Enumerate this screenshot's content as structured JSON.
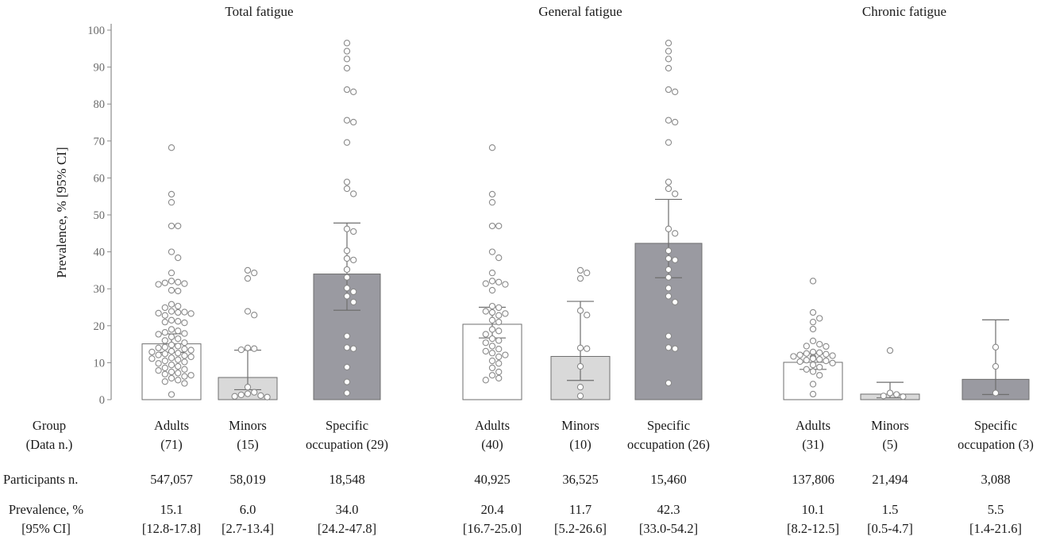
{
  "chart_data": {
    "type": "bar",
    "ylabel": "Prevalence, % [95% CI]",
    "ylim": [
      0,
      100
    ],
    "yticks": [
      0,
      10,
      20,
      30,
      40,
      50,
      60,
      70,
      80,
      90,
      100
    ],
    "colors": {
      "Adults": "#ffffff",
      "Minors": "#d9d9d9",
      "Specific occupation": "#9a9aa1",
      "axis": "#8c8c8c",
      "dot_edge": "#8a8a8a"
    },
    "row_labels": {
      "group": [
        "Group",
        "(Data n.)"
      ],
      "participants": "Participants n.",
      "prevalence": [
        "Prevalence, %",
        "[95% CI]"
      ]
    },
    "panels": [
      {
        "title": "Total fatigue",
        "bars": [
          {
            "group": "Adults",
            "label": [
              "Adults",
              "(71)"
            ],
            "participants": "547,057",
            "prevalence": "15.1",
            "ci_text": "[12.8-17.8]",
            "value": 15.1,
            "ci": [
              12.8,
              17.8
            ],
            "points": [
              68.2,
              55.6,
              53.4,
              47.0,
              47.0,
              40.0,
              38.4,
              34.3,
              32.1,
              31.8,
              31.6,
              31.4,
              31.2,
              29.6,
              29.4,
              25.8,
              25.3,
              24.9,
              23.9,
              23.7,
              23.6,
              23.4,
              23.3,
              22.8,
              21.5,
              21.2,
              21.0,
              20.8,
              19.0,
              18.6,
              18.2,
              17.9,
              17.7,
              17.0,
              16.5,
              16.0,
              15.4,
              14.8,
              14.5,
              14.2,
              14.0,
              13.7,
              13.4,
              13.1,
              12.9,
              12.6,
              12.4,
              12.1,
              11.9,
              11.6,
              11.3,
              11.1,
              10.8,
              10.5,
              10.2,
              9.8,
              9.4,
              9.0,
              8.6,
              8.2,
              7.9,
              7.5,
              7.2,
              6.9,
              6.6,
              6.3,
              5.8,
              5.3,
              4.9,
              4.4,
              1.4
            ]
          },
          {
            "group": "Minors",
            "label": [
              "Minors",
              "(15)"
            ],
            "participants": "58,019",
            "prevalence": "6.0",
            "ci_text": "[2.7-13.4]",
            "value": 6.0,
            "ci": [
              2.7,
              13.4
            ],
            "points": [
              35.0,
              34.3,
              32.8,
              23.9,
              22.9,
              14.0,
              13.8,
              13.5,
              3.4,
              2.0,
              1.6,
              1.3,
              1.1,
              0.9,
              0.7
            ]
          },
          {
            "group": "Specific occupation",
            "label": [
              "Specific",
              "occupation (29)"
            ],
            "participants": "18,548",
            "prevalence": "34.0",
            "ci_text": "[24.2-47.8]",
            "value": 34.0,
            "ci": [
              24.2,
              47.8
            ],
            "points": [
              96.5,
              94.3,
              92.2,
              89.7,
              83.9,
              83.3,
              75.6,
              75.1,
              69.6,
              58.9,
              57.1,
              55.7,
              46.2,
              45.5,
              40.3,
              38.2,
              37.8,
              35.2,
              33.1,
              30.2,
              29.2,
              28.0,
              26.4,
              17.2,
              14.1,
              13.8,
              8.8,
              4.8,
              1.8
            ]
          }
        ]
      },
      {
        "title": "General fatigue",
        "bars": [
          {
            "group": "Adults",
            "label": [
              "Adults",
              "(40)"
            ],
            "participants": "40,925",
            "prevalence": "20.4",
            "ci_text": "[16.7-25.0]",
            "value": 20.4,
            "ci": [
              16.7,
              25.0
            ],
            "points": [
              68.2,
              55.6,
              53.4,
              47.0,
              47.0,
              40.0,
              38.4,
              34.3,
              32.1,
              31.8,
              31.4,
              31.2,
              29.6,
              25.3,
              24.9,
              23.9,
              23.6,
              23.3,
              22.8,
              21.5,
              21.0,
              19.0,
              18.6,
              17.7,
              16.5,
              16.0,
              15.4,
              14.5,
              13.7,
              13.1,
              12.6,
              12.1,
              11.6,
              10.5,
              9.8,
              8.6,
              7.5,
              6.6,
              5.8,
              5.3
            ]
          },
          {
            "group": "Minors",
            "label": [
              "Minors",
              "(10)"
            ],
            "participants": "36,525",
            "prevalence": "11.7",
            "ci_text": "[5.2-26.6]",
            "value": 11.7,
            "ci": [
              5.2,
              26.6
            ],
            "points": [
              35.0,
              34.3,
              32.8,
              24.1,
              22.9,
              14.0,
              13.8,
              9.0,
              3.4,
              1.0
            ]
          },
          {
            "group": "Specific occupation",
            "label": [
              "Specific",
              "occupation (26)"
            ],
            "participants": "15,460",
            "prevalence": "42.3",
            "ci_text": "[33.0-54.2]",
            "value": 42.3,
            "ci": [
              33.0,
              54.2
            ],
            "points": [
              96.5,
              94.3,
              92.2,
              89.7,
              83.9,
              83.3,
              75.6,
              75.1,
              69.6,
              58.9,
              57.1,
              55.7,
              46.2,
              45.0,
              40.3,
              38.2,
              37.8,
              35.2,
              33.1,
              30.2,
              28.0,
              26.4,
              17.2,
              14.1,
              13.8,
              4.5
            ]
          }
        ]
      },
      {
        "title": "Chronic fatigue",
        "bars": [
          {
            "group": "Adults",
            "label": [
              "Adults",
              "(31)"
            ],
            "participants": "137,806",
            "prevalence": "10.1",
            "ci_text": "[8.2-12.5]",
            "value": 10.1,
            "ci": [
              8.2,
              12.5
            ],
            "points": [
              32.1,
              23.6,
              22.0,
              21.0,
              19.1,
              15.9,
              15.0,
              14.5,
              14.4,
              12.9,
              12.7,
              12.5,
              12.3,
              12.1,
              11.9,
              11.7,
              11.5,
              11.3,
              11.1,
              10.9,
              10.7,
              10.5,
              10.3,
              9.9,
              9.4,
              8.8,
              8.2,
              7.6,
              6.6,
              4.2,
              1.5
            ]
          },
          {
            "group": "Minors",
            "label": [
              "Minors",
              "(5)"
            ],
            "participants": "21,494",
            "prevalence": "1.5",
            "ci_text": "[0.5-4.7]",
            "value": 1.5,
            "ci": [
              0.5,
              4.7
            ],
            "points": [
              13.3,
              1.8,
              1.4,
              1.0,
              0.8
            ]
          },
          {
            "group": "Specific occupation",
            "label": [
              "Specific",
              "occupation (3)"
            ],
            "participants": "3,088",
            "prevalence": "5.5",
            "ci_text": "[1.4-21.6]",
            "value": 5.5,
            "ci": [
              1.4,
              21.6
            ],
            "points": [
              14.2,
              9.0,
              1.8
            ]
          }
        ]
      }
    ]
  }
}
